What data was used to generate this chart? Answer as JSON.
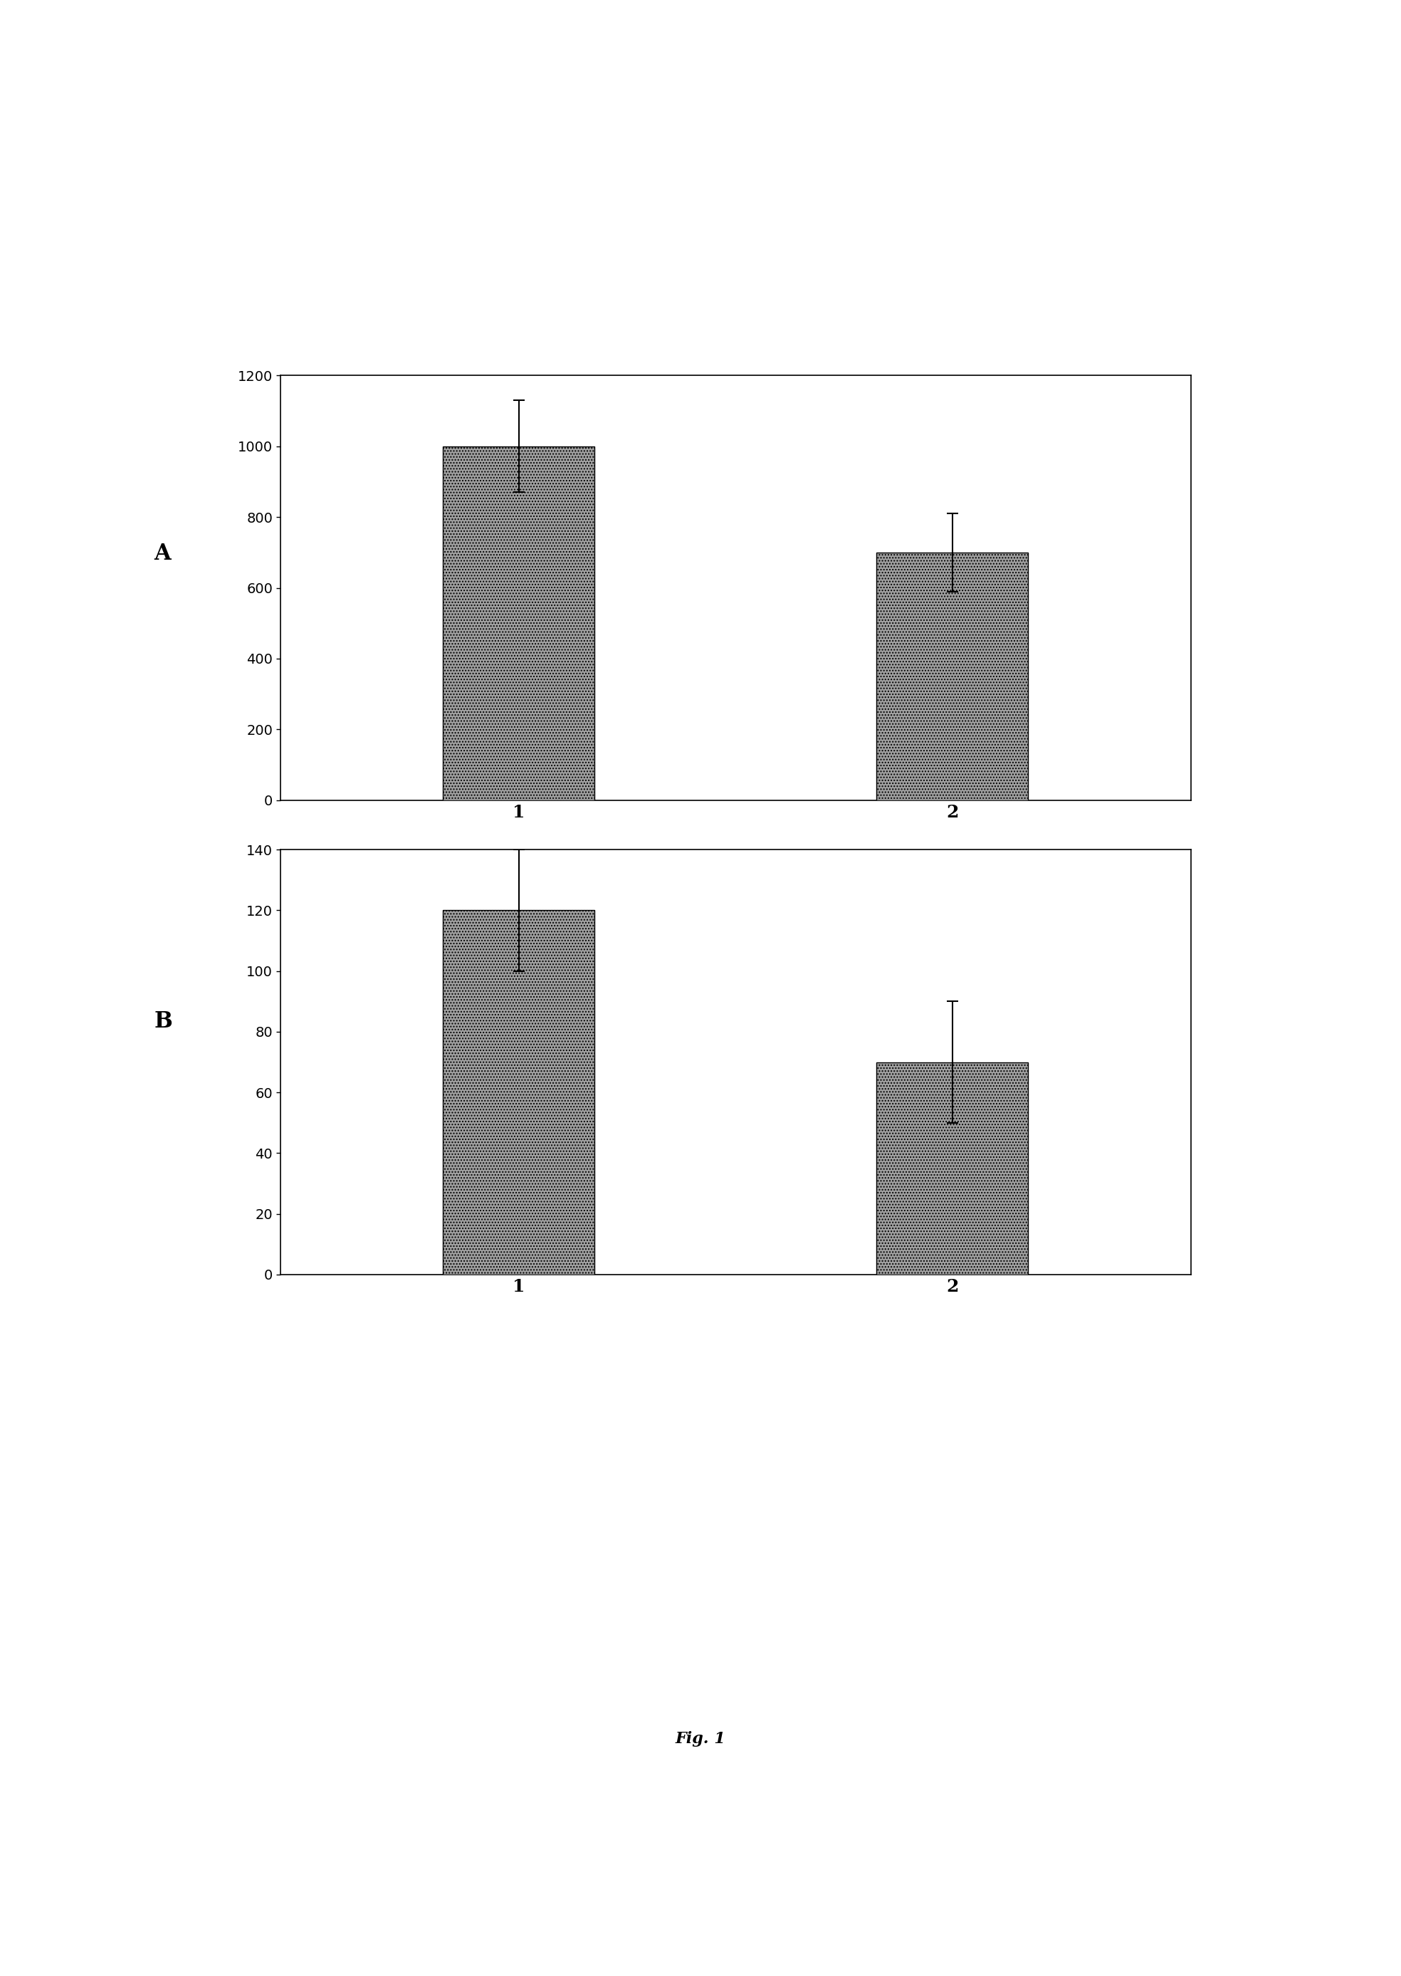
{
  "chart_A": {
    "categories": [
      "1",
      "2"
    ],
    "values": [
      1000,
      700
    ],
    "errors": [
      130,
      110
    ],
    "ylim": [
      0,
      1200
    ],
    "yticks": [
      0,
      200,
      400,
      600,
      800,
      1000,
      1200
    ],
    "label": "A"
  },
  "chart_B": {
    "categories": [
      "1",
      "2"
    ],
    "values": [
      120,
      70
    ],
    "errors": [
      20,
      20
    ],
    "ylim": [
      0,
      140
    ],
    "yticks": [
      0,
      20,
      40,
      60,
      80,
      100,
      120,
      140
    ],
    "label": "B"
  },
  "fig_label": "Fig. 1",
  "bar_color": "#a0a0a0",
  "bar_width": 0.35,
  "bar_edge_color": "#000000",
  "background_color": "#ffffff",
  "tick_fontsize": 14,
  "label_fontsize": 22,
  "xlabel_fontsize": 18,
  "fig_label_fontsize": 16
}
